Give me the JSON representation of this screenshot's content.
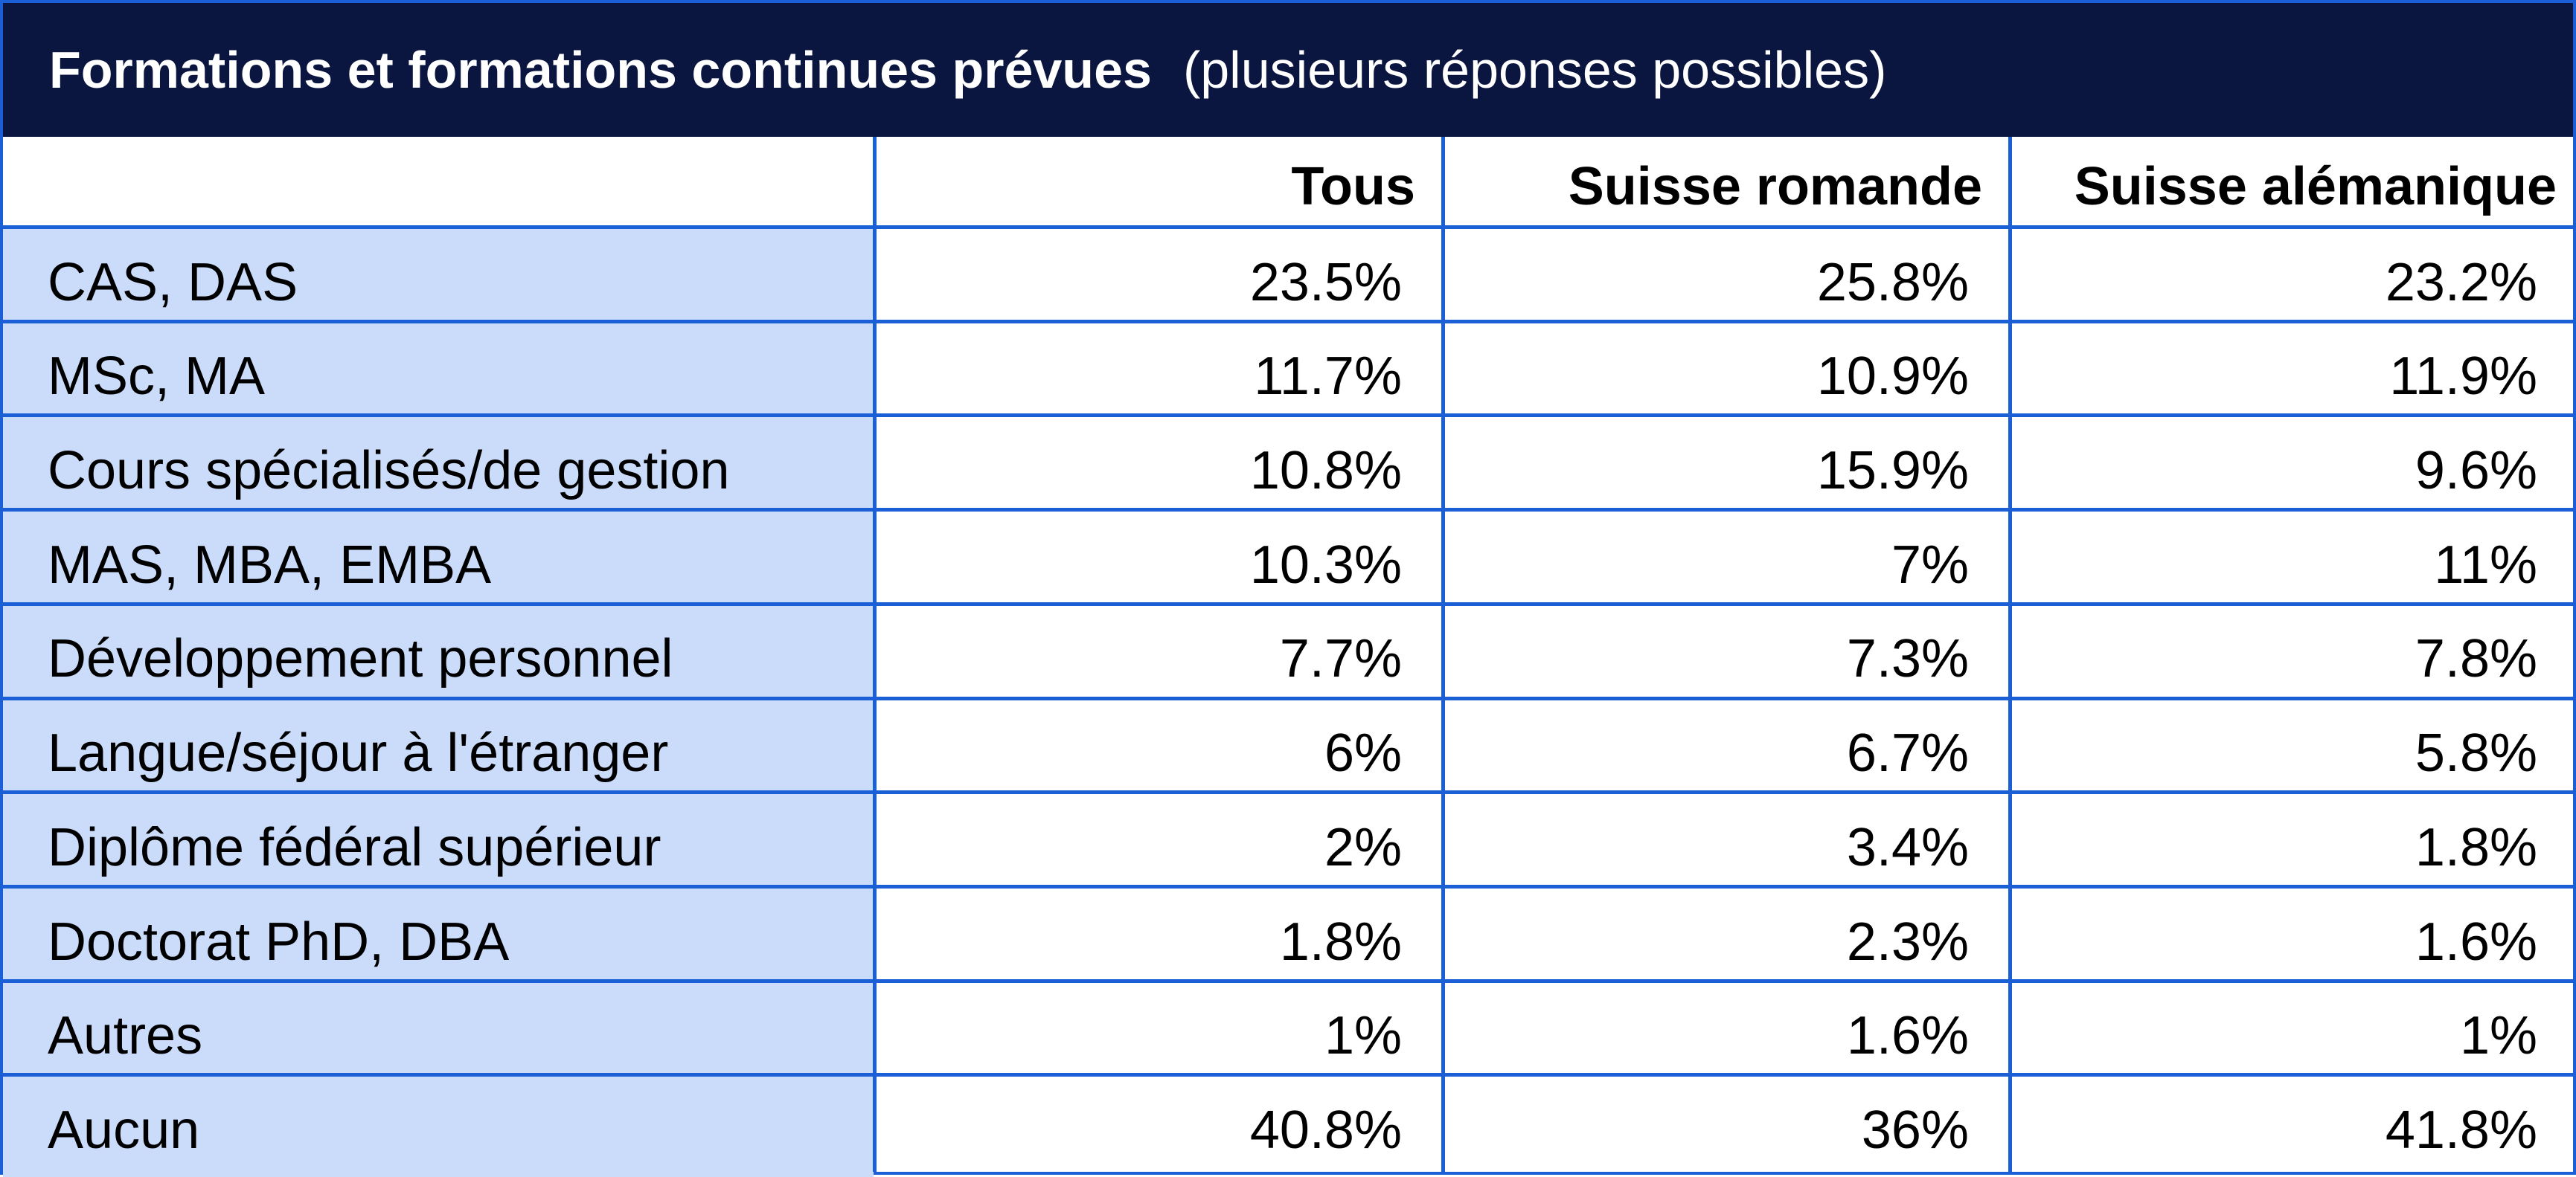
{
  "title": "Formations et formations continues prévues",
  "subtitle": "(plusieurs réponses possibles)",
  "colors": {
    "header_bg": "#0b1640",
    "grid_line": "#1b5fd6",
    "label_bg": "#cadcfa",
    "text": "#000000",
    "header_text": "#ffffff"
  },
  "chart_data": {
    "type": "table",
    "title": "Formations et formations continues prévues",
    "subtitle": "(plusieurs réponses possibles)",
    "columns": [
      "",
      "Tous",
      "Suisse romande",
      "Suisse alémanique"
    ],
    "rows": [
      {
        "label": "CAS, DAS",
        "values": [
          "23.5%",
          "25.8%",
          "23.2%"
        ]
      },
      {
        "label": "MSc, MA",
        "values": [
          "11.7%",
          "10.9%",
          "11.9%"
        ]
      },
      {
        "label": "Cours spécialisés/de gestion",
        "values": [
          "10.8%",
          "15.9%",
          "9.6%"
        ]
      },
      {
        "label": "MAS, MBA, EMBA",
        "values": [
          "10.3%",
          "7%",
          "11%"
        ]
      },
      {
        "label": "Développement personnel",
        "values": [
          "7.7%",
          "7.3%",
          "7.8%"
        ]
      },
      {
        "label": "Langue/séjour à l'étranger",
        "values": [
          "6%",
          "6.7%",
          "5.8%"
        ]
      },
      {
        "label": "Diplôme fédéral supérieur",
        "values": [
          "2%",
          "3.4%",
          "1.8%"
        ]
      },
      {
        "label": "Doctorat PhD, DBA",
        "values": [
          "1.8%",
          "2.3%",
          "1.6%"
        ]
      },
      {
        "label": "Autres",
        "values": [
          "1%",
          "1.6%",
          "1%"
        ]
      },
      {
        "label": "Aucun",
        "values": [
          "40.8%",
          "36%",
          "41.8%"
        ]
      }
    ]
  }
}
